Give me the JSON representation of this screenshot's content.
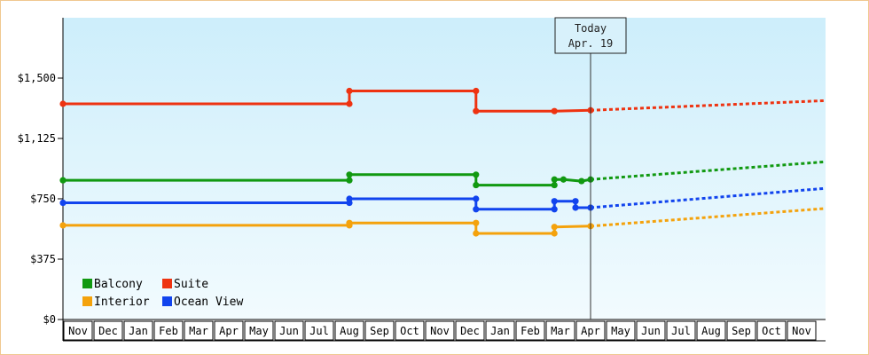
{
  "chart_data": {
    "type": "line",
    "title": "",
    "xlabel": "",
    "ylabel": "",
    "ylim": [
      0,
      1875
    ],
    "y_ticks": [
      {
        "value": 0,
        "label": "$0"
      },
      {
        "value": 375,
        "label": "$375"
      },
      {
        "value": 750,
        "label": "$750"
      },
      {
        "value": 1125,
        "label": "$1,125"
      },
      {
        "value": 1500,
        "label": "$1,500"
      }
    ],
    "x_months": [
      "Nov",
      "Dec",
      "Jan",
      "Feb",
      "Mar",
      "Apr",
      "May",
      "Jun",
      "Jul",
      "Aug",
      "Sep",
      "Oct",
      "Nov",
      "Dec",
      "Jan",
      "Feb",
      "Mar",
      "Apr",
      "May",
      "Jun",
      "Jul",
      "Aug",
      "Sep",
      "Oct",
      "Nov"
    ],
    "today_month_index": 17.5,
    "today_label": [
      "Today",
      "Apr. 19"
    ],
    "grid": false,
    "legend_position": "bottom-left",
    "series": [
      {
        "name": "Balcony",
        "color": "#119911",
        "points": [
          [
            0,
            865
          ],
          [
            9.5,
            865
          ],
          [
            9.5,
            900
          ],
          [
            13.7,
            900
          ],
          [
            13.7,
            835
          ],
          [
            16.3,
            835
          ],
          [
            16.3,
            870
          ],
          [
            16.6,
            870
          ],
          [
            17.2,
            860
          ],
          [
            17.5,
            870
          ]
        ],
        "forecast_end": 980
      },
      {
        "name": "Suite",
        "color": "#ee3311",
        "points": [
          [
            0,
            1340
          ],
          [
            9.5,
            1340
          ],
          [
            9.5,
            1420
          ],
          [
            13.7,
            1420
          ],
          [
            13.7,
            1295
          ],
          [
            16.3,
            1295
          ],
          [
            17.5,
            1300
          ]
        ],
        "forecast_end": 1360
      },
      {
        "name": "Interior",
        "color": "#f4a20c",
        "points": [
          [
            0,
            585
          ],
          [
            9.5,
            585
          ],
          [
            9.5,
            600
          ],
          [
            13.7,
            600
          ],
          [
            13.7,
            535
          ],
          [
            16.3,
            535
          ],
          [
            16.3,
            575
          ],
          [
            17.5,
            580
          ]
        ],
        "forecast_end": 690
      },
      {
        "name": "Ocean View",
        "color": "#1144ee",
        "points": [
          [
            0,
            725
          ],
          [
            9.5,
            725
          ],
          [
            9.5,
            750
          ],
          [
            13.7,
            750
          ],
          [
            13.7,
            685
          ],
          [
            16.3,
            685
          ],
          [
            16.3,
            735
          ],
          [
            17.0,
            735
          ],
          [
            17.0,
            695
          ],
          [
            17.5,
            695
          ]
        ],
        "forecast_end": 815
      }
    ]
  }
}
